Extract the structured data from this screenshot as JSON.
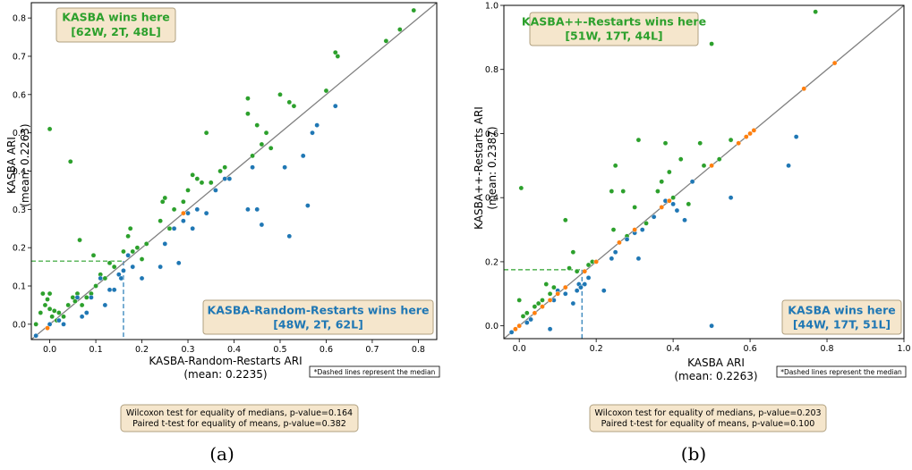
{
  "colors": {
    "green": "#2ca02c",
    "blue": "#1f77b4",
    "orange": "#ff7f0e",
    "diagonal": "#808080",
    "box_fill": "#f5e6cc",
    "box_edge": "#b0a080"
  },
  "chart_data": [
    {
      "type": "scatter",
      "panel_label": "(a)",
      "xlabel": "KASBA-Random-Restarts ARI",
      "xlabel_mean": "(mean: 0.2235)",
      "ylabel": "KASBA ARI",
      "ylabel_mean": "(mean: 0.2263)",
      "xlim": [
        -0.04,
        0.84
      ],
      "ylim": [
        -0.04,
        0.84
      ],
      "xticks": [
        0.0,
        0.1,
        0.2,
        0.3,
        0.4,
        0.5,
        0.6,
        0.7,
        0.8
      ],
      "yticks": [
        0.0,
        0.1,
        0.2,
        0.3,
        0.4,
        0.5,
        0.6,
        0.7,
        0.8
      ],
      "tick_labels": [
        "0.0",
        "0.1",
        "0.2",
        "0.3",
        "0.4",
        "0.5",
        "0.6",
        "0.7",
        "0.8"
      ],
      "median_x": 0.16,
      "median_y": 0.165,
      "top_box": {
        "title": "KASBA wins here",
        "stats": "[62W, 2T, 48L]"
      },
      "bottom_box": {
        "title": "KASBA-Random-Restarts wins here",
        "stats": "[48W, 2T, 62L]"
      },
      "note": "*Dashed lines represent the median",
      "test_line1": "Wilcoxon test for equality of medians, p-value=0.164",
      "test_line2": "Paired t-test for equality of means, p-value=0.382",
      "series": [
        {
          "class": "green",
          "points": [
            [
              -0.03,
              0.0
            ],
            [
              -0.02,
              0.03
            ],
            [
              -0.015,
              0.08
            ],
            [
              -0.01,
              0.05
            ],
            [
              -0.005,
              0.065
            ],
            [
              0.0,
              0.51
            ],
            [
              0.0,
              0.04
            ],
            [
              0.0,
              0.08
            ],
            [
              0.005,
              0.02
            ],
            [
              0.01,
              0.035
            ],
            [
              0.015,
              0.01
            ],
            [
              0.02,
              0.03
            ],
            [
              0.03,
              0.02
            ],
            [
              0.04,
              0.05
            ],
            [
              0.045,
              0.425
            ],
            [
              0.05,
              0.07
            ],
            [
              0.055,
              0.06
            ],
            [
              0.06,
              0.08
            ],
            [
              0.065,
              0.22
            ],
            [
              0.07,
              0.05
            ],
            [
              0.08,
              0.07
            ],
            [
              0.09,
              0.08
            ],
            [
              0.095,
              0.18
            ],
            [
              0.1,
              0.1
            ],
            [
              0.11,
              0.13
            ],
            [
              0.12,
              0.12
            ],
            [
              0.13,
              0.16
            ],
            [
              0.14,
              0.15
            ],
            [
              0.16,
              0.19
            ],
            [
              0.17,
              0.23
            ],
            [
              0.175,
              0.25
            ],
            [
              0.18,
              0.19
            ],
            [
              0.19,
              0.2
            ],
            [
              0.2,
              0.17
            ],
            [
              0.21,
              0.21
            ],
            [
              0.24,
              0.27
            ],
            [
              0.245,
              0.32
            ],
            [
              0.25,
              0.33
            ],
            [
              0.26,
              0.25
            ],
            [
              0.27,
              0.3
            ],
            [
              0.29,
              0.32
            ],
            [
              0.3,
              0.35
            ],
            [
              0.31,
              0.39
            ],
            [
              0.32,
              0.38
            ],
            [
              0.33,
              0.37
            ],
            [
              0.34,
              0.5
            ],
            [
              0.35,
              0.37
            ],
            [
              0.36,
              0.35
            ],
            [
              0.37,
              0.4
            ],
            [
              0.38,
              0.41
            ],
            [
              0.39,
              0.38
            ],
            [
              0.43,
              0.59
            ],
            [
              0.43,
              0.55
            ],
            [
              0.44,
              0.44
            ],
            [
              0.45,
              0.52
            ],
            [
              0.46,
              0.47
            ],
            [
              0.47,
              0.5
            ],
            [
              0.48,
              0.46
            ],
            [
              0.5,
              0.6
            ],
            [
              0.52,
              0.58
            ],
            [
              0.53,
              0.57
            ],
            [
              0.6,
              0.61
            ],
            [
              0.62,
              0.71
            ],
            [
              0.625,
              0.7
            ],
            [
              0.73,
              0.74
            ],
            [
              0.76,
              0.77
            ],
            [
              0.79,
              0.82
            ]
          ]
        },
        {
          "class": "blue",
          "points": [
            [
              -0.03,
              -0.03
            ],
            [
              0.0,
              0.0
            ],
            [
              0.02,
              0.01
            ],
            [
              0.03,
              0.0
            ],
            [
              0.06,
              0.07
            ],
            [
              0.07,
              0.02
            ],
            [
              0.08,
              0.03
            ],
            [
              0.09,
              0.07
            ],
            [
              0.11,
              0.12
            ],
            [
              0.12,
              0.05
            ],
            [
              0.13,
              0.09
            ],
            [
              0.14,
              0.09
            ],
            [
              0.15,
              0.13
            ],
            [
              0.155,
              0.12
            ],
            [
              0.16,
              0.14
            ],
            [
              0.17,
              0.18
            ],
            [
              0.18,
              0.15
            ],
            [
              0.2,
              0.12
            ],
            [
              0.24,
              0.15
            ],
            [
              0.25,
              0.21
            ],
            [
              0.27,
              0.25
            ],
            [
              0.28,
              0.16
            ],
            [
              0.29,
              0.27
            ],
            [
              0.3,
              0.29
            ],
            [
              0.31,
              0.25
            ],
            [
              0.32,
              0.3
            ],
            [
              0.34,
              0.29
            ],
            [
              0.36,
              0.35
            ],
            [
              0.38,
              0.38
            ],
            [
              0.39,
              0.38
            ],
            [
              0.43,
              0.3
            ],
            [
              0.44,
              0.41
            ],
            [
              0.45,
              0.3
            ],
            [
              0.46,
              0.26
            ],
            [
              0.51,
              0.41
            ],
            [
              0.52,
              0.23
            ],
            [
              0.55,
              0.44
            ],
            [
              0.56,
              0.31
            ],
            [
              0.57,
              0.5
            ],
            [
              0.58,
              0.52
            ],
            [
              0.62,
              0.57
            ]
          ]
        },
        {
          "class": "orange",
          "points": [
            [
              -0.005,
              -0.01
            ],
            [
              0.29,
              0.29
            ]
          ]
        }
      ]
    },
    {
      "type": "scatter",
      "panel_label": "(b)",
      "xlabel": "KASBA ARI",
      "xlabel_mean": "(mean: 0.2263)",
      "ylabel": "KASBA++-Restarts ARI",
      "ylabel_mean": "(mean: 0.2387)",
      "xlim": [
        -0.04,
        1.0
      ],
      "ylim": [
        -0.04,
        1.0
      ],
      "xticks": [
        0.0,
        0.2,
        0.4,
        0.6,
        0.8,
        1.0
      ],
      "yticks": [
        0.0,
        0.2,
        0.4,
        0.6,
        0.8,
        1.0
      ],
      "tick_labels": [
        "0.0",
        "0.2",
        "0.4",
        "0.6",
        "0.8",
        "1.0"
      ],
      "median_x": 0.163,
      "median_y": 0.175,
      "top_box": {
        "title": "KASBA++-Restarts wins here",
        "stats": "[51W, 17T, 44L]"
      },
      "bottom_box": {
        "title": "KASBA wins here",
        "stats": "[44W, 17T, 51L]"
      },
      "note": "*Dashed lines represent the median",
      "test_line1": "Wilcoxon test for equality of medians, p-value=0.203",
      "test_line2": "Paired t-test for equality of means, p-value=0.100",
      "series": [
        {
          "class": "green",
          "points": [
            [
              0.0,
              0.08
            ],
            [
              0.005,
              0.43
            ],
            [
              0.01,
              0.03
            ],
            [
              0.02,
              0.04
            ],
            [
              0.03,
              0.02
            ],
            [
              0.04,
              0.06
            ],
            [
              0.05,
              0.07
            ],
            [
              0.06,
              0.08
            ],
            [
              0.07,
              0.13
            ],
            [
              0.08,
              0.1
            ],
            [
              0.09,
              0.12
            ],
            [
              0.12,
              0.33
            ],
            [
              0.13,
              0.18
            ],
            [
              0.14,
              0.23
            ],
            [
              0.15,
              0.17
            ],
            [
              0.18,
              0.19
            ],
            [
              0.19,
              0.2
            ],
            [
              0.24,
              0.42
            ],
            [
              0.245,
              0.3
            ],
            [
              0.25,
              0.5
            ],
            [
              0.26,
              0.26
            ],
            [
              0.27,
              0.42
            ],
            [
              0.28,
              0.28
            ],
            [
              0.3,
              0.37
            ],
            [
              0.31,
              0.58
            ],
            [
              0.33,
              0.32
            ],
            [
              0.36,
              0.42
            ],
            [
              0.37,
              0.45
            ],
            [
              0.38,
              0.57
            ],
            [
              0.39,
              0.48
            ],
            [
              0.4,
              0.4
            ],
            [
              0.42,
              0.52
            ],
            [
              0.44,
              0.38
            ],
            [
              0.47,
              0.57
            ],
            [
              0.48,
              0.5
            ],
            [
              0.5,
              0.88
            ],
            [
              0.52,
              0.52
            ],
            [
              0.55,
              0.58
            ],
            [
              0.77,
              0.98
            ]
          ]
        },
        {
          "class": "blue",
          "points": [
            [
              -0.02,
              -0.02
            ],
            [
              0.0,
              0.0
            ],
            [
              0.02,
              0.01
            ],
            [
              0.03,
              0.02
            ],
            [
              0.08,
              -0.01
            ],
            [
              0.09,
              0.08
            ],
            [
              0.1,
              0.11
            ],
            [
              0.12,
              0.1
            ],
            [
              0.14,
              0.07
            ],
            [
              0.15,
              0.11
            ],
            [
              0.155,
              0.13
            ],
            [
              0.16,
              0.12
            ],
            [
              0.17,
              0.13
            ],
            [
              0.18,
              0.15
            ],
            [
              0.22,
              0.11
            ],
            [
              0.24,
              0.21
            ],
            [
              0.25,
              0.23
            ],
            [
              0.28,
              0.27
            ],
            [
              0.3,
              0.29
            ],
            [
              0.31,
              0.21
            ],
            [
              0.32,
              0.3
            ],
            [
              0.35,
              0.34
            ],
            [
              0.38,
              0.39
            ],
            [
              0.4,
              0.38
            ],
            [
              0.41,
              0.36
            ],
            [
              0.43,
              0.33
            ],
            [
              0.45,
              0.45
            ],
            [
              0.5,
              0.0
            ],
            [
              0.55,
              0.4
            ],
            [
              0.7,
              0.5
            ],
            [
              0.72,
              0.59
            ]
          ]
        },
        {
          "class": "orange",
          "points": [
            [
              -0.01,
              -0.01
            ],
            [
              0.0,
              0.0
            ],
            [
              0.04,
              0.04
            ],
            [
              0.06,
              0.06
            ],
            [
              0.08,
              0.08
            ],
            [
              0.1,
              0.1
            ],
            [
              0.12,
              0.12
            ],
            [
              0.17,
              0.17
            ],
            [
              0.2,
              0.2
            ],
            [
              0.26,
              0.26
            ],
            [
              0.3,
              0.3
            ],
            [
              0.37,
              0.37
            ],
            [
              0.39,
              0.39
            ],
            [
              0.5,
              0.5
            ],
            [
              0.57,
              0.57
            ],
            [
              0.59,
              0.59
            ],
            [
              0.6,
              0.6
            ],
            [
              0.61,
              0.61
            ],
            [
              0.74,
              0.74
            ],
            [
              0.82,
              0.82
            ]
          ]
        }
      ]
    }
  ]
}
